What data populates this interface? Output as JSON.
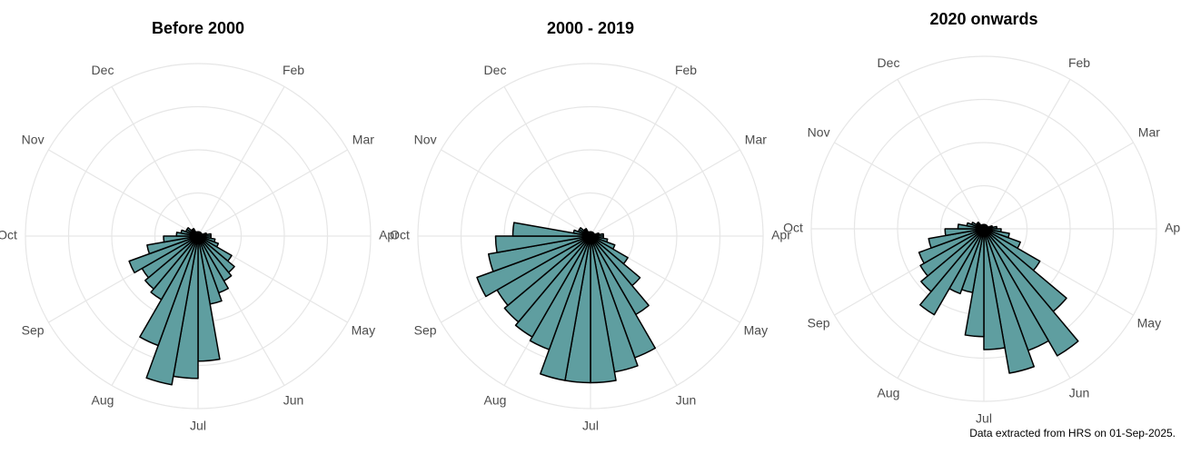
{
  "chart_data": [
    {
      "type": "rose",
      "title": "Before 2000",
      "color": "#5f9ea0",
      "x": [
        0,
        10,
        20,
        30,
        40,
        50,
        60,
        70,
        80,
        90,
        100,
        110,
        120,
        130,
        140,
        150,
        160,
        170,
        180,
        190,
        200,
        210,
        220,
        230,
        240,
        250,
        260,
        270,
        280,
        290,
        300,
        310,
        320,
        330,
        340,
        350
      ],
      "values": [
        0.1,
        0.1,
        0.1,
        0.1,
        0.1,
        0.1,
        0.1,
        0.2,
        0.3,
        0.3,
        0.4,
        0.5,
        0.9,
        1.1,
        1.2,
        1.4,
        1.6,
        2.9,
        3.3,
        3.5,
        2.7,
        1.7,
        1.6,
        1.5,
        1.7,
        1.2,
        0.8,
        0.5,
        0.4,
        0.3,
        0.3,
        0.2,
        0.2,
        0.1,
        0.1,
        0.1
      ],
      "xlim": [
        0,
        360
      ],
      "ylim": [
        0,
        4
      ],
      "yticks": [
        1,
        2,
        3,
        4
      ],
      "xticks": [
        {
          "value": 30,
          "label": "Feb"
        },
        {
          "value": 60,
          "label": "Mar"
        },
        {
          "value": 90,
          "label": "Apr"
        },
        {
          "value": 120,
          "label": "May"
        },
        {
          "value": 150,
          "label": "Jun"
        },
        {
          "value": 180,
          "label": "Jul"
        },
        {
          "value": 210,
          "label": "Aug"
        },
        {
          "value": 240,
          "label": "Sep"
        },
        {
          "value": 270,
          "label": "Oct"
        },
        {
          "value": 300,
          "label": "Nov"
        },
        {
          "value": 330,
          "label": "Dec"
        }
      ]
    },
    {
      "type": "rose",
      "title": "2000 - 2019",
      "color": "#5f9ea0",
      "x": [
        0,
        10,
        20,
        30,
        40,
        50,
        60,
        70,
        80,
        90,
        100,
        110,
        120,
        130,
        140,
        150,
        160,
        170,
        180,
        190,
        200,
        210,
        220,
        230,
        240,
        250,
        260,
        270,
        280,
        290,
        300,
        310,
        320,
        330,
        340,
        350
      ],
      "values": [
        0.1,
        0.1,
        0.1,
        0.1,
        0.1,
        0.1,
        0.1,
        0.2,
        0.3,
        0.3,
        0.4,
        0.6,
        1.0,
        1.5,
        2.1,
        3.0,
        3.2,
        3.4,
        3.4,
        3.4,
        2.8,
        2.7,
        2.6,
        2.5,
        2.8,
        2.4,
        2.2,
        1.8,
        0.4,
        0.3,
        0.3,
        0.2,
        0.2,
        0.1,
        0.1,
        0.1
      ],
      "xlim": [
        0,
        360
      ],
      "ylim": [
        0,
        4
      ],
      "yticks": [
        1,
        2,
        3,
        4
      ],
      "xticks": [
        {
          "value": 30,
          "label": "Feb"
        },
        {
          "value": 60,
          "label": "Mar"
        },
        {
          "value": 90,
          "label": "Apr"
        },
        {
          "value": 120,
          "label": "May"
        },
        {
          "value": 150,
          "label": "Jun"
        },
        {
          "value": 180,
          "label": "Jul"
        },
        {
          "value": 210,
          "label": "Aug"
        },
        {
          "value": 240,
          "label": "Sep"
        },
        {
          "value": 270,
          "label": "Oct"
        },
        {
          "value": 300,
          "label": "Nov"
        },
        {
          "value": 330,
          "label": "Dec"
        }
      ]
    },
    {
      "type": "rose",
      "title": "2020 onwards",
      "color": "#5f9ea0",
      "x": [
        0,
        10,
        20,
        30,
        40,
        50,
        60,
        70,
        80,
        90,
        100,
        110,
        120,
        130,
        140,
        150,
        160,
        170,
        180,
        190,
        200,
        210,
        220,
        230,
        240,
        250,
        260,
        270,
        280,
        290,
        300,
        310,
        320,
        330,
        340,
        350
      ],
      "values": [
        0.1,
        0.1,
        0.1,
        0.1,
        0.1,
        0.1,
        0.1,
        0.2,
        0.3,
        0.4,
        0.6,
        0.9,
        1.5,
        2.5,
        3.4,
        3.0,
        3.4,
        2.8,
        2.5,
        1.5,
        1.6,
        2.3,
        1.9,
        1.7,
        1.6,
        1.3,
        0.9,
        0.6,
        0.4,
        0.3,
        0.2,
        0.2,
        0.1,
        0.1,
        0.1,
        0.1
      ],
      "xlim": [
        0,
        360
      ],
      "ylim": [
        0,
        4
      ],
      "yticks": [
        1,
        2,
        3,
        4
      ],
      "xticks": [
        {
          "value": 30,
          "label": "Feb"
        },
        {
          "value": 60,
          "label": "Mar"
        },
        {
          "value": 90,
          "label": "Apr"
        },
        {
          "value": 120,
          "label": "May"
        },
        {
          "value": 150,
          "label": "Jun"
        },
        {
          "value": 180,
          "label": "Jul"
        },
        {
          "value": 210,
          "label": "Aug"
        },
        {
          "value": 240,
          "label": "Sep"
        },
        {
          "value": 270,
          "label": "Oct"
        },
        {
          "value": 300,
          "label": "Nov"
        },
        {
          "value": 330,
          "label": "Dec"
        }
      ]
    }
  ],
  "caption": "Data extracted from HRS on 01-Sep-2025."
}
